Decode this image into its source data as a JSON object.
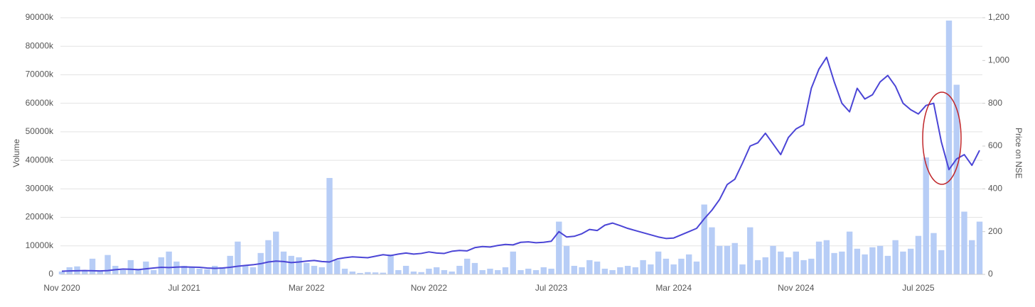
{
  "chart_data": {
    "type": "bar",
    "ylabel": "Volume",
    "y2label": "Price on NSE",
    "categories": [
      "Nov 2020",
      null,
      null,
      null,
      null,
      null,
      null,
      null,
      null,
      null,
      null,
      null,
      null,
      null,
      null,
      null,
      "Jul 2021",
      null,
      null,
      null,
      null,
      null,
      null,
      null,
      null,
      null,
      null,
      null,
      null,
      null,
      null,
      null,
      "Mar 2022",
      null,
      null,
      null,
      null,
      null,
      null,
      null,
      null,
      null,
      null,
      null,
      null,
      null,
      null,
      null,
      "Nov 2022",
      null,
      null,
      null,
      null,
      null,
      null,
      null,
      null,
      null,
      null,
      null,
      null,
      null,
      null,
      null,
      "Jul 2023",
      null,
      null,
      null,
      null,
      null,
      null,
      null,
      null,
      null,
      null,
      null,
      null,
      null,
      null,
      null,
      "Mar 2024",
      null,
      null,
      null,
      null,
      null,
      null,
      null,
      null,
      null,
      null,
      null,
      null,
      null,
      null,
      null,
      "Nov 2024",
      null,
      null,
      null,
      null,
      null,
      null,
      null,
      null,
      null,
      null,
      null,
      null,
      null,
      null,
      null,
      "Jul 2025",
      null,
      null,
      null,
      null,
      null,
      null,
      null,
      null
    ],
    "series": [
      {
        "type": "bar",
        "color": "#b7cdf6",
        "values": [
          1000,
          2500,
          2800,
          1500,
          5500,
          1200,
          6800,
          3000,
          1500,
          5000,
          2000,
          4500,
          1500,
          6000,
          8000,
          4500,
          3000,
          2500,
          2000,
          1800,
          3000,
          2500,
          6500,
          11500,
          3000,
          2500,
          7500,
          12000,
          15000,
          8000,
          6500,
          6000,
          4000,
          3000,
          2500,
          33800,
          5000,
          2000,
          1000,
          500,
          800,
          700,
          600,
          7000,
          1500,
          3000,
          1000,
          800,
          2000,
          2500,
          1500,
          1000,
          3000,
          5500,
          4000,
          1500,
          2000,
          1500,
          2500,
          8000,
          1500,
          2000,
          1500,
          2500,
          2000,
          18500,
          10000,
          3000,
          2500,
          5000,
          4500,
          2000,
          1500,
          2500,
          3000,
          2500,
          5000,
          3500,
          8000,
          5500,
          3500,
          5500,
          7000,
          4500,
          24500,
          16500,
          10000,
          10000,
          11000,
          3500,
          16500,
          5000,
          6000,
          10000,
          8000,
          6000,
          8000,
          5000,
          5500,
          11500,
          12000,
          7500,
          8000,
          15000,
          9000,
          7000,
          9500,
          10000,
          6500,
          12000,
          8000,
          9000,
          13500,
          41000,
          14500,
          8500,
          89000,
          66500,
          22000,
          12000,
          18500
        ]
      },
      {
        "type": "line",
        "axis": "y2",
        "color": "#4b45d6",
        "values": [
          15,
          16,
          17,
          18,
          17,
          16,
          18,
          22,
          25,
          24,
          22,
          26,
          30,
          33,
          32,
          34,
          35,
          34,
          33,
          30,
          28,
          30,
          33,
          38,
          42,
          45,
          50,
          58,
          62,
          60,
          55,
          58,
          62,
          65,
          60,
          58,
          72,
          78,
          82,
          80,
          78,
          85,
          92,
          88,
          95,
          100,
          95,
          98,
          105,
          100,
          98,
          108,
          112,
          110,
          125,
          130,
          128,
          135,
          140,
          138,
          150,
          152,
          148,
          150,
          155,
          200,
          175,
          178,
          190,
          210,
          205,
          230,
          240,
          228,
          215,
          205,
          195,
          185,
          175,
          168,
          170,
          185,
          200,
          215,
          260,
          300,
          350,
          420,
          445,
          520,
          600,
          615,
          660,
          610,
          560,
          640,
          680,
          700,
          870,
          960,
          1015,
          900,
          800,
          760,
          870,
          820,
          840,
          900,
          930,
          880,
          800,
          770,
          750,
          790,
          800,
          620,
          490,
          540,
          560,
          510,
          580
        ]
      }
    ],
    "ylim": [
      0,
      90000
    ],
    "yticks": [
      0,
      {
        "value": 10000,
        "label": "10000k"
      },
      {
        "value": 20000,
        "label": "20000k"
      },
      {
        "value": 30000,
        "label": "30000k"
      },
      {
        "value": 40000,
        "label": "40000k"
      },
      {
        "value": 50000,
        "label": "50000k"
      },
      {
        "value": 60000,
        "label": "60000k"
      },
      {
        "value": 70000,
        "label": "70000k"
      },
      {
        "value": 80000,
        "label": "80000k"
      },
      {
        "value": 90000,
        "label": "90000k"
      }
    ],
    "y2lim": [
      0,
      1200
    ],
    "y2ticks": [
      0,
      200,
      400,
      600,
      800,
      {
        "value": 1000,
        "label": "1,000"
      },
      {
        "value": 1200,
        "label": "1,200"
      }
    ],
    "grid": true
  }
}
